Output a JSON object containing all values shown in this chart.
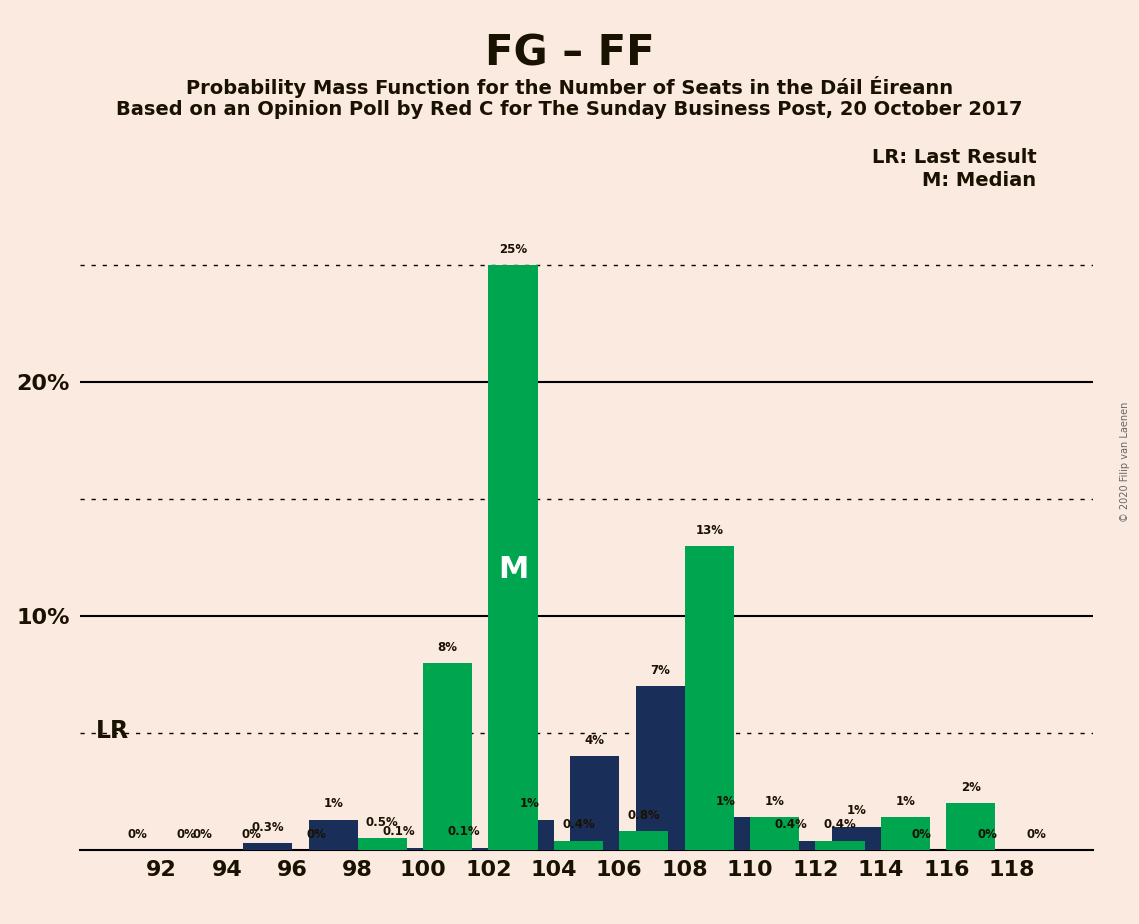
{
  "title": "FG – FF",
  "subtitle1": "Probability Mass Function for the Number of Seats in the Dáil Éireann",
  "subtitle2": "Based on an Opinion Poll by Red C for The Sunday Business Post, 20 October 2017",
  "copyright": "© 2020 Filip van Laenen",
  "legend1": "LR: Last Result",
  "legend2": "M: Median",
  "lr_label": "LR",
  "median_label": "M",
  "seats": [
    92,
    94,
    96,
    98,
    100,
    102,
    104,
    106,
    108,
    110,
    112,
    114,
    116,
    118
  ],
  "fg_values": [
    0.0,
    0.0,
    0.3,
    1.3,
    0.1,
    0.1,
    1.3,
    4.0,
    7.0,
    1.4,
    0.4,
    1.0,
    0.0,
    0.0
  ],
  "ff_values": [
    0.0,
    0.0,
    0.0,
    0.5,
    8.0,
    25.0,
    0.4,
    0.8,
    13.0,
    1.4,
    0.4,
    1.4,
    2.0,
    0.0
  ],
  "fg_color": "#1a2e5a",
  "ff_color": "#00a550",
  "background_color": "#faeae0",
  "text_color": "#1a1200",
  "lr_seat": 98,
  "median_seat": 102,
  "bar_width": 1.5,
  "ylim": 31,
  "xlim_left": 89.5,
  "xlim_right": 120.5,
  "solid_lines": [
    10,
    20
  ],
  "dotted_lines": [
    5,
    15,
    25
  ],
  "ytick_labels": [
    "10%",
    "20%"
  ],
  "ytick_positions": [
    10,
    20
  ],
  "label_fontsize": 8.5,
  "tick_fontsize": 16,
  "title_fontsize": 30,
  "subtitle_fontsize": 14,
  "legend_fontsize": 14,
  "lr_fontsize": 17,
  "median_fontsize": 22
}
